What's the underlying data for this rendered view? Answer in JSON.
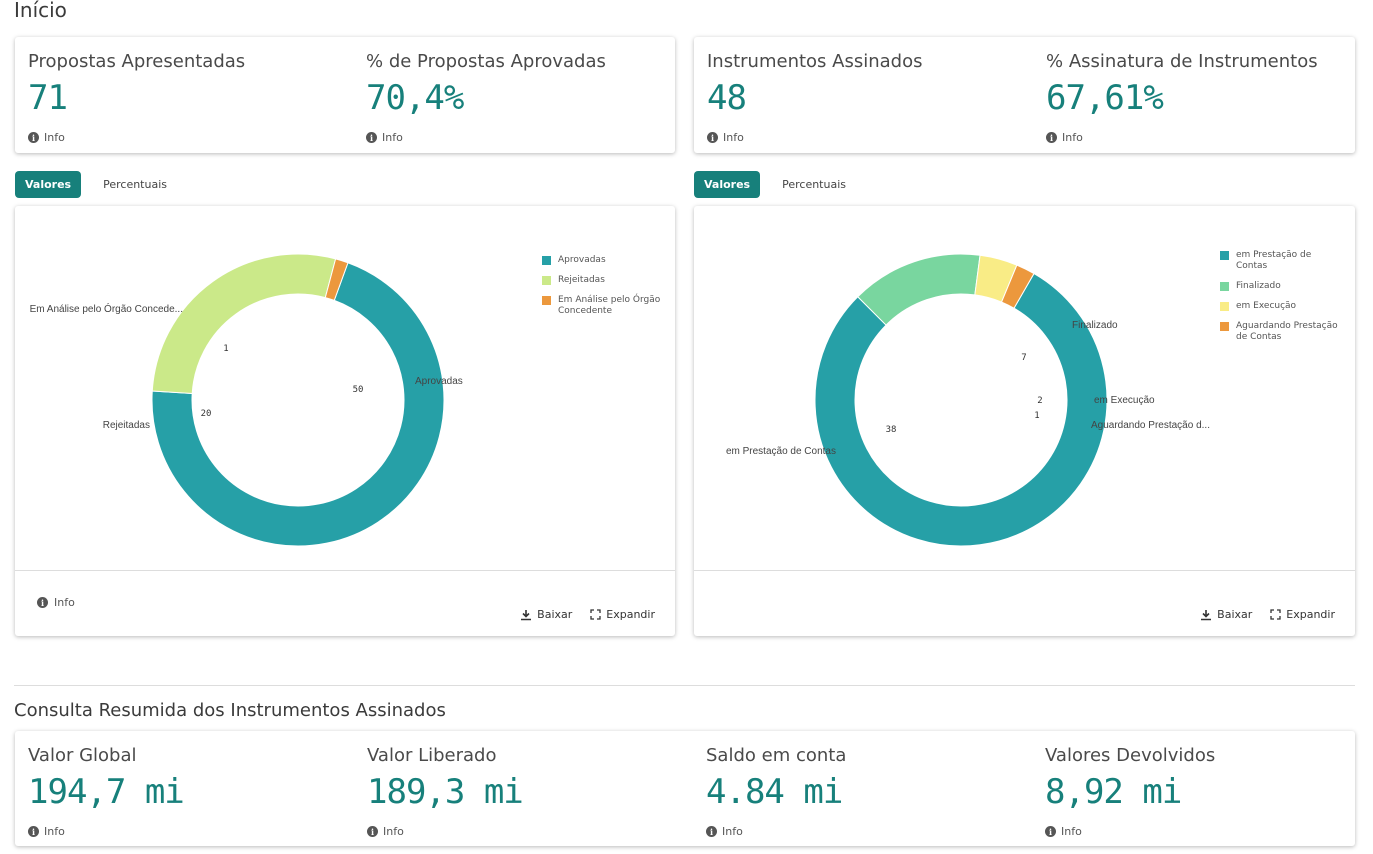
{
  "page": {
    "title": "Início"
  },
  "kpi_left": {
    "items": [
      {
        "label": "Propostas Apresentadas",
        "value": "71",
        "info": "Info"
      },
      {
        "label": "% de Propostas Aprovadas",
        "value": "70,4%",
        "info": "Info"
      }
    ]
  },
  "kpi_right": {
    "items": [
      {
        "label": "Instrumentos Assinados",
        "value": "48",
        "info": "Info"
      },
      {
        "label": "% Assinatura de Instrumentos",
        "value": "67,61%",
        "info": "Info"
      }
    ]
  },
  "tabs_left": {
    "active": "Valores",
    "other": "Percentuais"
  },
  "tabs_right": {
    "active": "Valores",
    "other": "Percentuais"
  },
  "chart_left_footer": {
    "info": "Info",
    "download": "Baixar",
    "expand": "Expandir"
  },
  "chart_right_footer": {
    "download": "Baixar",
    "expand": "Expandir"
  },
  "chart_data": [
    {
      "type": "pie",
      "donut": true,
      "slices": [
        {
          "label": "Aprovadas",
          "short_label": "Aprovadas",
          "value": 50,
          "color": "#26a0a7"
        },
        {
          "label": "Rejeitadas",
          "short_label": "Rejeitadas",
          "value": 20,
          "color": "#cbe989"
        },
        {
          "label": "Em Análise pelo Órgão Concedente",
          "short_label": "Em Análise pelo Órgão Concede...",
          "value": 1,
          "color": "#ec983d"
        }
      ],
      "legend": [
        "Aprovadas",
        "Rejeitadas",
        "Em Análise pelo Órgão Concedente"
      ],
      "legend_position": "top-right"
    },
    {
      "type": "pie",
      "donut": true,
      "slices": [
        {
          "label": "em Prestação de Contas",
          "short_label": "em Prestação de Contas",
          "value": 38,
          "color": "#26a0a7"
        },
        {
          "label": "Finalizado",
          "short_label": "Finalizado",
          "value": 7,
          "color": "#79d69f"
        },
        {
          "label": "em Execução",
          "short_label": "em Execução",
          "value": 2,
          "color": "#f9ec86"
        },
        {
          "label": "Aguardando Prestação de Contas",
          "short_label": "Aguardando Prestação d...",
          "value": 1,
          "color": "#ec983d"
        }
      ],
      "legend": [
        "em Prestação de Contas",
        "Finalizado",
        "em Execução",
        "Aguardando Prestação de Contas"
      ],
      "legend_position": "top-right"
    }
  ],
  "summary": {
    "title": "Consulta Resumida dos Instrumentos Assinados",
    "items": [
      {
        "label": "Valor Global",
        "value": "194,7 mi",
        "info": "Info"
      },
      {
        "label": "Valor Liberado",
        "value": "189,3 mi",
        "info": "Info"
      },
      {
        "label": "Saldo em conta",
        "value": "4.84 mi",
        "info": "Info"
      },
      {
        "label": "Valores Devolvidos",
        "value": "8,92 mi",
        "info": "Info"
      }
    ]
  }
}
